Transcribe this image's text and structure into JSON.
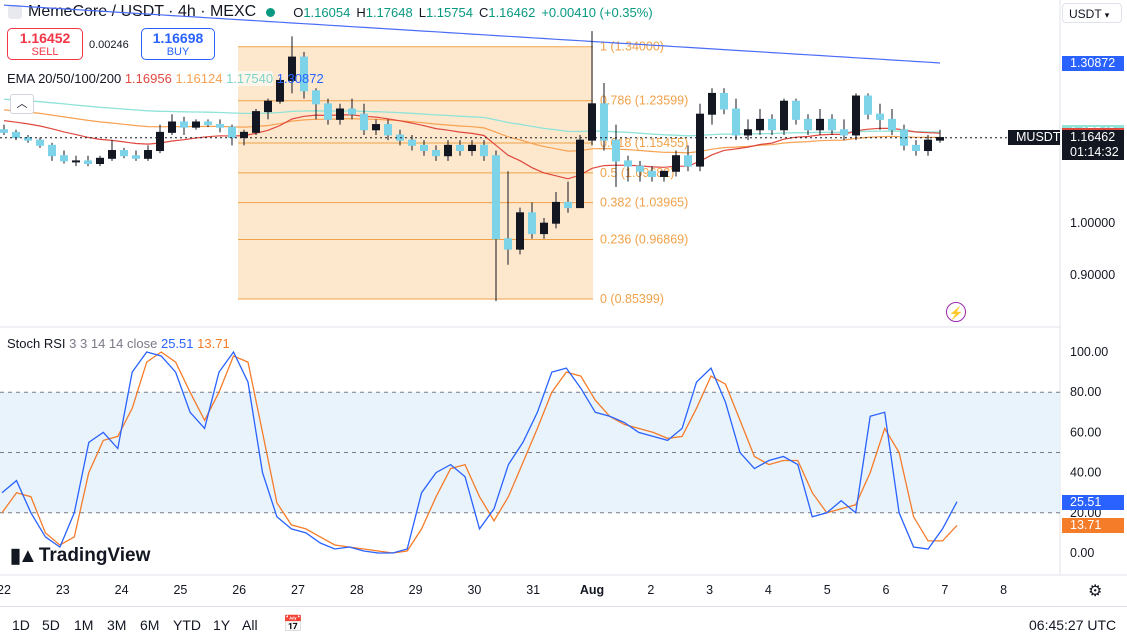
{
  "header": {
    "title": "MemeCore / USDT · 4h · MEXC",
    "ohlc": [
      {
        "label": "O",
        "value": "1.16054"
      },
      {
        "label": "H",
        "value": "1.17648"
      },
      {
        "label": "L",
        "value": "1.15754"
      },
      {
        "label": "C",
        "value": "1.16462"
      }
    ],
    "change": "+0.00410 (+0.35%)"
  },
  "trade": {
    "sell_price": "1.16452",
    "sell_label": "SELL",
    "buy_price": "1.16698",
    "buy_label": "BUY",
    "spread": "0.00246"
  },
  "ema_legend": {
    "name": "EMA 20/50/100/200",
    "v20": "1.16956",
    "v50": "1.16124",
    "v100": "1.17540",
    "v200": "1.30872"
  },
  "stoch_legend": {
    "name": "Stoch RSI",
    "params": "3 3 14 14 close",
    "k": "25.51",
    "d": "13.71"
  },
  "currency": "USDT",
  "symbol_tag": "MUSDT",
  "current_price": "1.16462",
  "countdown": "01:14:32",
  "colors": {
    "up": "#089981",
    "down": "#131722",
    "up_candle": "#7dd3e8",
    "ema20": "#e0483e",
    "ema50": "#f7a152",
    "ema100": "#8fe3d8",
    "ema200": "#4a6cf7",
    "fib_fill": "#fde4c4",
    "fib_line": "#f0a24a",
    "stoch_k": "#2962ff",
    "stoch_d": "#f57c29",
    "band_fill": "#e3f0fb"
  },
  "bottom_bar": {
    "ranges": [
      "1D",
      "5D",
      "1M",
      "3M",
      "6M",
      "YTD",
      "1Y",
      "All"
    ],
    "clock": "06:45:27 UTC"
  },
  "logo_text": "TradingView",
  "chart_data": [
    {
      "type": "candlestick",
      "title": "MemeCore / USDT · 4h · MEXC",
      "x_ticks": [
        "22",
        "23",
        "24",
        "25",
        "26",
        "27",
        "28",
        "29",
        "30",
        "31",
        "Aug",
        "2",
        "3",
        "4",
        "5",
        "6",
        "7",
        "8"
      ],
      "y_ticks": [
        "1.00000",
        "0.90000"
      ],
      "y_range": [
        0.8,
        1.43
      ],
      "price_tags": [
        {
          "value": 1.30872,
          "text": "1.30872",
          "color": "#2962ff"
        },
        {
          "value": 1.1754,
          "text": "1.17540",
          "color": "#8fe3d8"
        },
        {
          "value": 1.16956,
          "text": "1.16956",
          "color": "#e0483e"
        },
        {
          "value": 1.16124,
          "text": "1.16124",
          "color": "#f7a152"
        }
      ],
      "fib_levels": [
        {
          "ratio": "1",
          "value": 1.34,
          "label": "1 (1.34000)"
        },
        {
          "ratio": "0.786",
          "value": 1.23599,
          "label": "0.786 (1.23599)"
        },
        {
          "ratio": "0.618",
          "value": 1.15455,
          "label": "0.618 (1.15455)"
        },
        {
          "ratio": "0.5",
          "value": 1.09682,
          "label": "0.5 (1.09682)"
        },
        {
          "ratio": "0.382",
          "value": 1.03965,
          "label": "0.382 (1.03965)"
        },
        {
          "ratio": "0.236",
          "value": 0.96869,
          "label": "0.236 (0.96869)"
        },
        {
          "ratio": "0",
          "value": 0.85399,
          "label": "0 (0.85399)"
        }
      ],
      "candles": [
        [
          1.18,
          1.19,
          1.17,
          1.175
        ],
        [
          1.175,
          1.18,
          1.16,
          1.165
        ],
        [
          1.165,
          1.17,
          1.155,
          1.16
        ],
        [
          1.16,
          1.165,
          1.145,
          1.15
        ],
        [
          1.15,
          1.155,
          1.12,
          1.13
        ],
        [
          1.13,
          1.14,
          1.115,
          1.12
        ],
        [
          1.12,
          1.13,
          1.11,
          1.12
        ],
        [
          1.12,
          1.13,
          1.11,
          1.115
        ],
        [
          1.115,
          1.13,
          1.11,
          1.125
        ],
        [
          1.125,
          1.16,
          1.12,
          1.14
        ],
        [
          1.14,
          1.145,
          1.125,
          1.13
        ],
        [
          1.13,
          1.14,
          1.12,
          1.125
        ],
        [
          1.125,
          1.15,
          1.12,
          1.14
        ],
        [
          1.14,
          1.19,
          1.135,
          1.175
        ],
        [
          1.175,
          1.21,
          1.17,
          1.195
        ],
        [
          1.195,
          1.205,
          1.17,
          1.185
        ],
        [
          1.185,
          1.2,
          1.18,
          1.195
        ],
        [
          1.195,
          1.2,
          1.185,
          1.19
        ],
        [
          1.19,
          1.2,
          1.175,
          1.185
        ],
        [
          1.185,
          1.19,
          1.15,
          1.165
        ],
        [
          1.165,
          1.18,
          1.15,
          1.175
        ],
        [
          1.175,
          1.22,
          1.17,
          1.215
        ],
        [
          1.215,
          1.24,
          1.2,
          1.235
        ],
        [
          1.235,
          1.28,
          1.23,
          1.275
        ],
        [
          1.275,
          1.36,
          1.25,
          1.32
        ],
        [
          1.32,
          1.33,
          1.24,
          1.255
        ],
        [
          1.255,
          1.26,
          1.2,
          1.23
        ],
        [
          1.23,
          1.24,
          1.19,
          1.2
        ],
        [
          1.2,
          1.23,
          1.19,
          1.22
        ],
        [
          1.22,
          1.24,
          1.2,
          1.21
        ],
        [
          1.21,
          1.23,
          1.17,
          1.18
        ],
        [
          1.18,
          1.2,
          1.17,
          1.19
        ],
        [
          1.19,
          1.2,
          1.16,
          1.17
        ],
        [
          1.17,
          1.18,
          1.15,
          1.16
        ],
        [
          1.16,
          1.17,
          1.14,
          1.15
        ],
        [
          1.15,
          1.16,
          1.13,
          1.14
        ],
        [
          1.14,
          1.15,
          1.12,
          1.13
        ],
        [
          1.13,
          1.16,
          1.12,
          1.15
        ],
        [
          1.15,
          1.16,
          1.13,
          1.14
        ],
        [
          1.14,
          1.16,
          1.13,
          1.15
        ],
        [
          1.15,
          1.16,
          1.12,
          1.13
        ],
        [
          1.13,
          1.14,
          0.85,
          0.97
        ],
        [
          0.97,
          1.1,
          0.92,
          0.95
        ],
        [
          0.95,
          1.03,
          0.94,
          1.02
        ],
        [
          1.02,
          1.04,
          0.97,
          0.98
        ],
        [
          0.98,
          1.01,
          0.97,
          1.0
        ],
        [
          1.0,
          1.06,
          0.99,
          1.04
        ],
        [
          1.04,
          1.08,
          1.02,
          1.03
        ],
        [
          1.03,
          1.17,
          1.03,
          1.16
        ],
        [
          1.16,
          1.37,
          1.15,
          1.23
        ],
        [
          1.23,
          1.27,
          1.14,
          1.16
        ],
        [
          1.16,
          1.19,
          1.07,
          1.12
        ],
        [
          1.12,
          1.13,
          1.08,
          1.11
        ],
        [
          1.11,
          1.12,
          1.08,
          1.1
        ],
        [
          1.1,
          1.11,
          1.08,
          1.09
        ],
        [
          1.09,
          1.1,
          1.08,
          1.1
        ],
        [
          1.1,
          1.14,
          1.09,
          1.13
        ],
        [
          1.13,
          1.15,
          1.1,
          1.11
        ],
        [
          1.11,
          1.23,
          1.1,
          1.21
        ],
        [
          1.21,
          1.26,
          1.19,
          1.25
        ],
        [
          1.25,
          1.26,
          1.21,
          1.22
        ],
        [
          1.22,
          1.24,
          1.16,
          1.17
        ],
        [
          1.17,
          1.2,
          1.16,
          1.18
        ],
        [
          1.18,
          1.22,
          1.17,
          1.2
        ],
        [
          1.2,
          1.21,
          1.17,
          1.18
        ],
        [
          1.18,
          1.24,
          1.17,
          1.235
        ],
        [
          1.235,
          1.24,
          1.19,
          1.2
        ],
        [
          1.2,
          1.21,
          1.17,
          1.18
        ],
        [
          1.18,
          1.22,
          1.17,
          1.2
        ],
        [
          1.2,
          1.21,
          1.17,
          1.18
        ],
        [
          1.18,
          1.2,
          1.16,
          1.17
        ],
        [
          1.17,
          1.25,
          1.16,
          1.245
        ],
        [
          1.245,
          1.25,
          1.2,
          1.21
        ],
        [
          1.21,
          1.23,
          1.18,
          1.2
        ],
        [
          1.2,
          1.22,
          1.17,
          1.18
        ],
        [
          1.18,
          1.19,
          1.14,
          1.15
        ],
        [
          1.15,
          1.16,
          1.13,
          1.14
        ],
        [
          1.14,
          1.17,
          1.13,
          1.16
        ],
        [
          1.16,
          1.18,
          1.155,
          1.165
        ]
      ]
    },
    {
      "type": "line",
      "title": "Stoch RSI",
      "y_ticks": [
        "100.00",
        "80.00",
        "60.00",
        "40.00",
        "20.00",
        "0.00"
      ],
      "y_range": [
        0,
        100
      ],
      "bands": [
        80,
        50,
        20
      ],
      "series": [
        {
          "name": "K",
          "values": [
            30,
            36,
            20,
            8,
            3,
            20,
            55,
            60,
            52,
            90,
            100,
            98,
            90,
            70,
            62,
            90,
            100,
            85,
            40,
            18,
            12,
            10,
            5,
            2,
            3,
            1,
            0,
            0,
            2,
            30,
            40,
            44,
            38,
            12,
            22,
            44,
            55,
            70,
            90,
            92,
            82,
            70,
            68,
            65,
            60,
            58,
            56,
            62,
            85,
            92,
            75,
            50,
            42,
            46,
            48,
            44,
            18,
            20,
            26,
            20,
            68,
            70,
            20,
            3,
            2,
            12,
            25.51
          ]
        },
        {
          "name": "D",
          "values": [
            20,
            30,
            28,
            10,
            4,
            8,
            40,
            56,
            58,
            72,
            95,
            100,
            95,
            80,
            66,
            80,
            98,
            95,
            60,
            25,
            14,
            12,
            8,
            4,
            3,
            2,
            1,
            0,
            1,
            12,
            28,
            42,
            44,
            28,
            16,
            28,
            45,
            62,
            80,
            90,
            88,
            76,
            68,
            64,
            62,
            60,
            57,
            58,
            72,
            88,
            84,
            66,
            48,
            44,
            46,
            46,
            30,
            20,
            22,
            24,
            40,
            62,
            50,
            18,
            6,
            6,
            13.71
          ]
        }
      ]
    }
  ]
}
